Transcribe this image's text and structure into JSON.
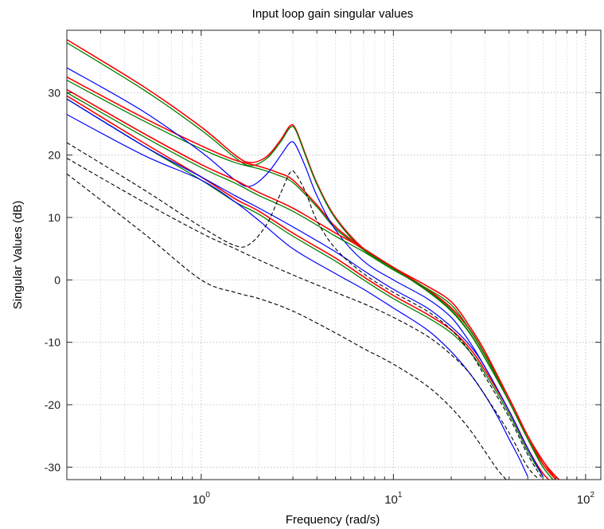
{
  "chart_data": {
    "type": "line",
    "title": "Input loop gain singular values",
    "xlabel": "Frequency (rad/s)",
    "ylabel": "Singular Values (dB)",
    "xscale": "log",
    "xlim": [
      0.2,
      120
    ],
    "ylim": [
      -32,
      40
    ],
    "xticks": [
      {
        "value": 1,
        "base": "10",
        "exp": "0"
      },
      {
        "value": 10,
        "base": "10",
        "exp": "1"
      },
      {
        "value": 100,
        "base": "10",
        "exp": "2"
      }
    ],
    "yticks": [
      {
        "value": 30,
        "label": "30"
      },
      {
        "value": 20,
        "label": "20"
      },
      {
        "value": 10,
        "label": "10"
      },
      {
        "value": 0,
        "label": "0"
      },
      {
        "value": -10,
        "label": "-10"
      },
      {
        "value": -20,
        "label": "-20"
      },
      {
        "value": -30,
        "label": "-30"
      }
    ],
    "grid": true,
    "legend": "none",
    "series": [
      {
        "color": "#ff0000",
        "width": 1.6,
        "dash": "",
        "points": [
          [
            0.2,
            38.5
          ],
          [
            0.5,
            31
          ],
          [
            1,
            24.5
          ],
          [
            1.5,
            20
          ],
          [
            1.8,
            18.8
          ],
          [
            2.2,
            19.8
          ],
          [
            2.6,
            22.5
          ],
          [
            2.9,
            24.7
          ],
          [
            3.1,
            24.2
          ],
          [
            3.5,
            20
          ],
          [
            4,
            15.5
          ],
          [
            5,
            10
          ],
          [
            7,
            5
          ],
          [
            10,
            2
          ],
          [
            15,
            -1.5
          ],
          [
            20,
            -4.5
          ],
          [
            25,
            -8
          ],
          [
            30,
            -12
          ],
          [
            40,
            -19
          ],
          [
            50,
            -25
          ],
          [
            60,
            -29
          ],
          [
            70,
            -31.5
          ],
          [
            80,
            -33
          ]
        ]
      },
      {
        "color": "#008000",
        "width": 1.3,
        "dash": "",
        "points": [
          [
            0.2,
            38
          ],
          [
            0.5,
            30.5
          ],
          [
            1,
            24
          ],
          [
            1.5,
            19.6
          ],
          [
            1.8,
            18.3
          ],
          [
            2.2,
            19.5
          ],
          [
            2.6,
            22.2
          ],
          [
            2.9,
            24.4
          ],
          [
            3.1,
            24
          ],
          [
            3.5,
            19.8
          ],
          [
            4,
            15.3
          ],
          [
            5,
            9.8
          ],
          [
            7,
            4.8
          ],
          [
            10,
            1.8
          ],
          [
            15,
            -1.7
          ],
          [
            20,
            -4.8
          ],
          [
            25,
            -8.5
          ],
          [
            30,
            -12.5
          ],
          [
            40,
            -19.5
          ],
          [
            50,
            -25.5
          ],
          [
            60,
            -29.5
          ],
          [
            70,
            -32
          ]
        ]
      },
      {
        "color": "#ff0000",
        "width": 1.6,
        "dash": "",
        "points": [
          [
            0.2,
            32.5
          ],
          [
            0.5,
            26
          ],
          [
            1,
            21.5
          ],
          [
            1.5,
            19.2
          ],
          [
            2,
            18.2
          ],
          [
            2.5,
            17.2
          ],
          [
            3,
            16
          ],
          [
            4,
            12
          ],
          [
            5,
            8.5
          ],
          [
            7,
            5
          ],
          [
            10,
            2
          ],
          [
            15,
            -1.5
          ],
          [
            20,
            -4.5
          ],
          [
            25,
            -8
          ],
          [
            30,
            -12
          ],
          [
            40,
            -19
          ],
          [
            50,
            -25
          ],
          [
            60,
            -29
          ],
          [
            70,
            -32
          ]
        ]
      },
      {
        "color": "#008000",
        "width": 1.3,
        "dash": "",
        "points": [
          [
            0.2,
            32
          ],
          [
            0.5,
            25.5
          ],
          [
            1,
            21
          ],
          [
            1.5,
            18.8
          ],
          [
            2,
            17.8
          ],
          [
            2.5,
            16.8
          ],
          [
            3,
            15.6
          ],
          [
            4,
            11.7
          ],
          [
            5,
            8.2
          ],
          [
            7,
            4.8
          ],
          [
            10,
            1.8
          ],
          [
            15,
            -1.8
          ],
          [
            20,
            -5
          ],
          [
            25,
            -8.6
          ],
          [
            30,
            -12.6
          ],
          [
            40,
            -19.5
          ],
          [
            50,
            -25.5
          ],
          [
            60,
            -30
          ],
          [
            70,
            -32.5
          ]
        ]
      },
      {
        "color": "#0000ff",
        "width": 1.2,
        "dash": "",
        "points": [
          [
            0.2,
            34
          ],
          [
            0.5,
            27
          ],
          [
            1,
            20.5
          ],
          [
            1.5,
            16
          ],
          [
            1.8,
            15
          ],
          [
            2.2,
            17
          ],
          [
            2.6,
            20
          ],
          [
            2.9,
            22
          ],
          [
            3.1,
            21.6
          ],
          [
            3.5,
            18
          ],
          [
            4,
            13.5
          ],
          [
            5,
            8
          ],
          [
            7,
            3
          ],
          [
            10,
            0
          ],
          [
            15,
            -3
          ],
          [
            20,
            -6
          ],
          [
            25,
            -10
          ],
          [
            30,
            -14
          ],
          [
            40,
            -21
          ],
          [
            50,
            -27
          ],
          [
            60,
            -31.5
          ]
        ]
      },
      {
        "color": "#ff0000",
        "width": 1.6,
        "dash": "",
        "points": [
          [
            0.2,
            30.5
          ],
          [
            0.5,
            23.5
          ],
          [
            1,
            18.5
          ],
          [
            1.5,
            16
          ],
          [
            2,
            14
          ],
          [
            3,
            11.5
          ],
          [
            5,
            7.5
          ],
          [
            7,
            5
          ],
          [
            10,
            2
          ],
          [
            15,
            -1
          ],
          [
            20,
            -3.5
          ],
          [
            25,
            -7.5
          ],
          [
            30,
            -11.5
          ],
          [
            40,
            -19
          ],
          [
            50,
            -25
          ],
          [
            60,
            -29.5
          ],
          [
            70,
            -32
          ]
        ]
      },
      {
        "color": "#008000",
        "width": 1.3,
        "dash": "",
        "points": [
          [
            0.2,
            30
          ],
          [
            0.5,
            23
          ],
          [
            1,
            18
          ],
          [
            1.5,
            15.5
          ],
          [
            2,
            13.5
          ],
          [
            3,
            11
          ],
          [
            5,
            7
          ],
          [
            7,
            4.5
          ],
          [
            10,
            1.6
          ],
          [
            15,
            -1.4
          ],
          [
            20,
            -4
          ],
          [
            25,
            -8
          ],
          [
            30,
            -12
          ],
          [
            40,
            -19.5
          ],
          [
            50,
            -25.5
          ],
          [
            60,
            -30
          ],
          [
            70,
            -32.5
          ]
        ]
      },
      {
        "color": "#ff0000",
        "width": 1.6,
        "dash": "",
        "points": [
          [
            0.2,
            29.5
          ],
          [
            0.5,
            22
          ],
          [
            1,
            16.5
          ],
          [
            1.5,
            13
          ],
          [
            2,
            11
          ],
          [
            3,
            7.5
          ],
          [
            5,
            3.5
          ],
          [
            7,
            0.5
          ],
          [
            10,
            -2.5
          ],
          [
            15,
            -5.5
          ],
          [
            20,
            -8
          ],
          [
            25,
            -11
          ],
          [
            30,
            -14.5
          ],
          [
            40,
            -21
          ],
          [
            50,
            -27
          ],
          [
            60,
            -31
          ],
          [
            70,
            -33
          ]
        ]
      },
      {
        "color": "#008000",
        "width": 1.3,
        "dash": "",
        "points": [
          [
            0.2,
            29
          ],
          [
            0.5,
            21.5
          ],
          [
            1,
            16
          ],
          [
            1.5,
            12.5
          ],
          [
            2,
            10.5
          ],
          [
            3,
            7
          ],
          [
            5,
            3
          ],
          [
            7,
            0
          ],
          [
            10,
            -3
          ],
          [
            15,
            -6
          ],
          [
            20,
            -8.5
          ],
          [
            25,
            -11.5
          ],
          [
            30,
            -15
          ],
          [
            40,
            -21.5
          ],
          [
            50,
            -27.5
          ],
          [
            60,
            -31.5
          ]
        ]
      },
      {
        "color": "#0000ff",
        "width": 1.2,
        "dash": "",
        "points": [
          [
            0.2,
            29
          ],
          [
            0.5,
            21.5
          ],
          [
            1,
            16.5
          ],
          [
            1.5,
            13.5
          ],
          [
            2,
            11.5
          ],
          [
            3,
            8.5
          ],
          [
            5,
            4.5
          ],
          [
            7,
            1.5
          ],
          [
            10,
            -1.5
          ],
          [
            15,
            -4.5
          ],
          [
            20,
            -7.5
          ],
          [
            25,
            -10.5
          ],
          [
            30,
            -14
          ],
          [
            40,
            -21
          ],
          [
            50,
            -27
          ],
          [
            60,
            -31.5
          ]
        ]
      },
      {
        "color": "#0000ff",
        "width": 1.2,
        "dash": "",
        "points": [
          [
            0.2,
            26.5
          ],
          [
            0.5,
            20
          ],
          [
            1,
            16
          ],
          [
            1.5,
            12.5
          ],
          [
            2,
            9.5
          ],
          [
            3,
            5
          ],
          [
            5,
            1
          ],
          [
            7,
            -1.5
          ],
          [
            10,
            -4.5
          ],
          [
            15,
            -8
          ],
          [
            20,
            -11.5
          ],
          [
            25,
            -15
          ],
          [
            30,
            -18.5
          ],
          [
            35,
            -22
          ],
          [
            40,
            -25.5
          ],
          [
            45,
            -28.5
          ],
          [
            50,
            -31.5
          ]
        ]
      },
      {
        "color": "#000000",
        "width": 1.1,
        "dash": "5 3",
        "points": [
          [
            0.2,
            22
          ],
          [
            0.5,
            14.5
          ],
          [
            1,
            8.5
          ],
          [
            1.5,
            5.5
          ],
          [
            1.8,
            5.8
          ],
          [
            2.2,
            9
          ],
          [
            2.6,
            14
          ],
          [
            2.9,
            17.2
          ],
          [
            3.1,
            17
          ],
          [
            3.5,
            14
          ],
          [
            4,
            9.5
          ],
          [
            5,
            5
          ],
          [
            7,
            1
          ],
          [
            10,
            -2
          ],
          [
            15,
            -5
          ],
          [
            20,
            -8
          ],
          [
            25,
            -11.5
          ],
          [
            30,
            -15.5
          ],
          [
            40,
            -22
          ],
          [
            50,
            -28
          ],
          [
            60,
            -32
          ]
        ]
      },
      {
        "color": "#000000",
        "width": 1.1,
        "dash": "5 3",
        "points": [
          [
            0.2,
            19.5
          ],
          [
            0.5,
            12.5
          ],
          [
            1,
            7.5
          ],
          [
            1.5,
            5
          ],
          [
            2,
            3.2
          ],
          [
            3,
            0.8
          ],
          [
            5,
            -2
          ],
          [
            7,
            -3.8
          ],
          [
            10,
            -6
          ],
          [
            15,
            -9
          ],
          [
            20,
            -12
          ],
          [
            25,
            -15
          ],
          [
            30,
            -18.5
          ],
          [
            40,
            -24.5
          ],
          [
            50,
            -30
          ],
          [
            60,
            -32.5
          ]
        ]
      },
      {
        "color": "#000000",
        "width": 1.1,
        "dash": "5 3",
        "points": [
          [
            0.2,
            17
          ],
          [
            0.5,
            7.5
          ],
          [
            1,
            0
          ],
          [
            1.5,
            -2
          ],
          [
            2,
            -3
          ],
          [
            3,
            -5
          ],
          [
            5,
            -8.5
          ],
          [
            7,
            -11
          ],
          [
            10,
            -13.5
          ],
          [
            15,
            -17
          ],
          [
            20,
            -20.5
          ],
          [
            25,
            -24
          ],
          [
            30,
            -27.5
          ],
          [
            35,
            -30.5
          ],
          [
            40,
            -32.5
          ]
        ]
      }
    ]
  }
}
